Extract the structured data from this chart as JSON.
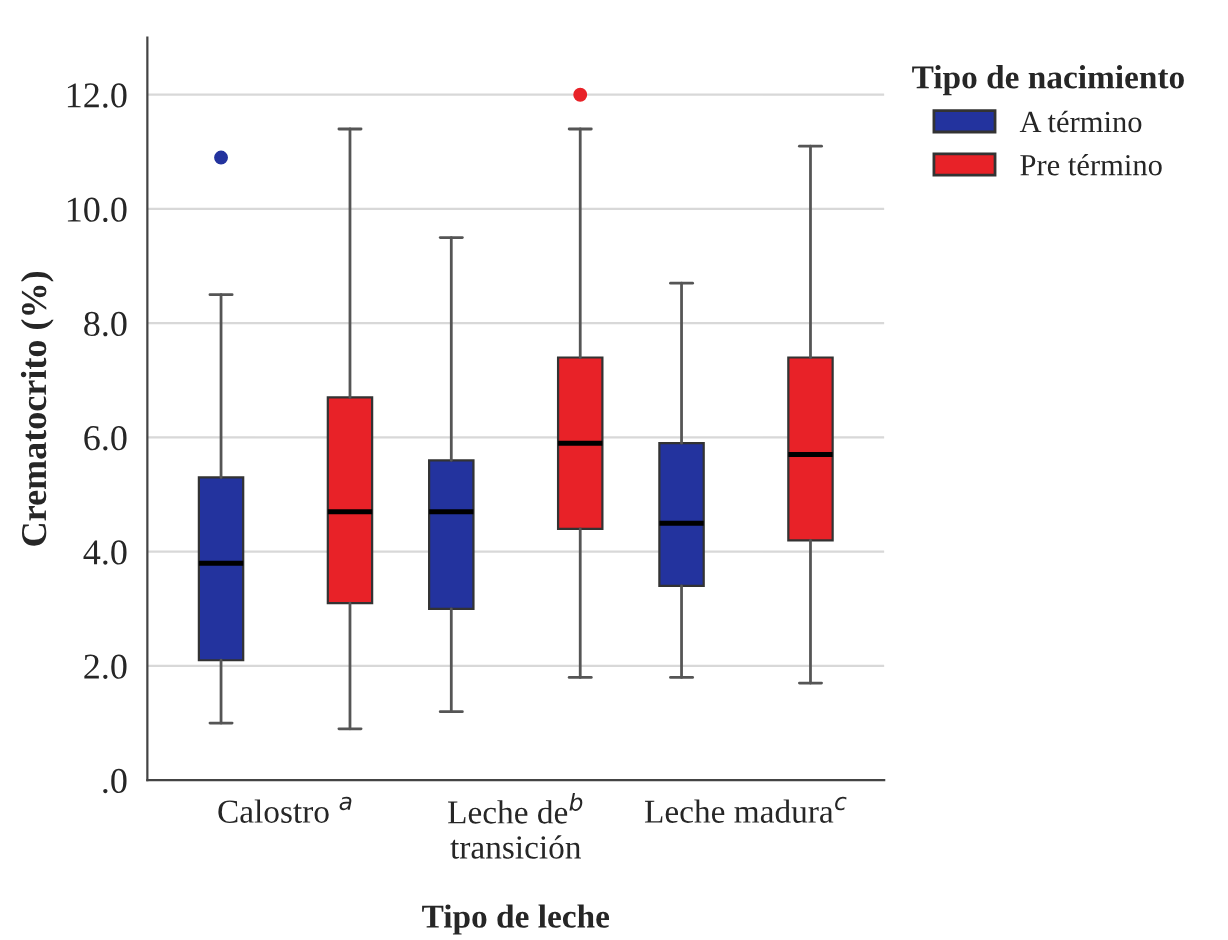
{
  "chart_data": {
    "type": "box",
    "xlabel": "Tipo de leche",
    "ylabel": "Crematocrito (%)",
    "legend_title": "Tipo de nacimiento",
    "categories": [
      "Calostro $^{a}$",
      "Leche de$^{b}$\ntransición",
      "Leche madura$^{c}$"
    ],
    "series": [
      {
        "name": "A término",
        "color": "#23339e",
        "boxes": [
          {
            "low": 1.0,
            "q1": 2.1,
            "median": 3.8,
            "q3": 5.3,
            "high": 8.5,
            "outliers": [
              10.9
            ]
          },
          {
            "low": 1.2,
            "q1": 3.0,
            "median": 4.7,
            "q3": 5.6,
            "high": 9.5
          },
          {
            "low": 1.8,
            "q1": 3.4,
            "median": 4.5,
            "q3": 5.9,
            "high": 8.7
          }
        ]
      },
      {
        "name": "Pre término",
        "color": "#e82228",
        "boxes": [
          {
            "low": 0.9,
            "q1": 3.1,
            "median": 4.7,
            "q3": 6.7,
            "high": 11.4
          },
          {
            "low": 1.8,
            "q1": 4.4,
            "median": 5.9,
            "q3": 7.4,
            "high": 11.4,
            "outliers": [
              12.0
            ]
          },
          {
            "low": 1.7,
            "q1": 4.2,
            "median": 5.7,
            "q3": 7.4,
            "high": 11.1
          }
        ]
      }
    ],
    "ylim": [
      0,
      13
    ],
    "yticks": [
      {
        "value": 0,
        "label": ".0"
      },
      {
        "value": 2,
        "label": "2.0"
      },
      {
        "value": 4,
        "label": "4.0"
      },
      {
        "value": 6,
        "label": "6.0"
      },
      {
        "value": 8,
        "label": "8.0"
      },
      {
        "value": 10,
        "label": "10.0"
      },
      {
        "value": 12,
        "label": "12.0"
      }
    ],
    "grid": "y",
    "legend": "top right"
  }
}
